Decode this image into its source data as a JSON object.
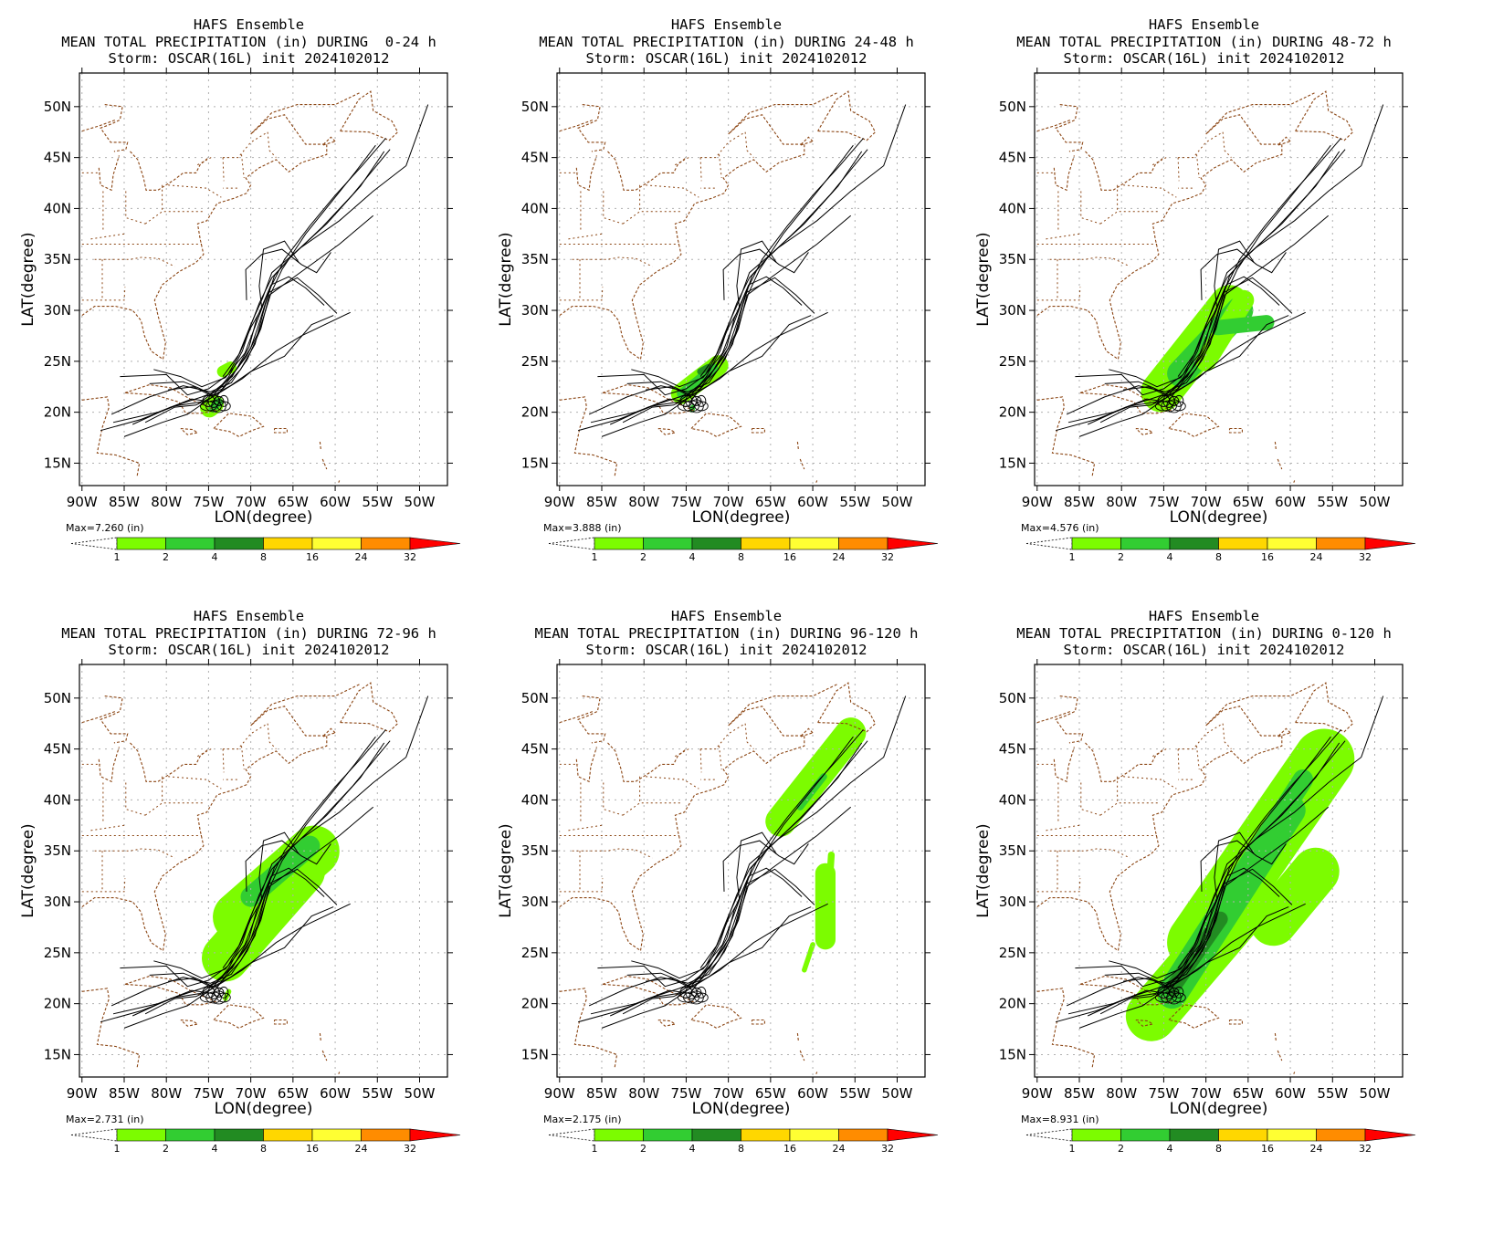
{
  "common": {
    "model": "HAFS Ensemble",
    "storm_line": "Storm: OSCAR(16L) init 2024102012",
    "x_axis_title": "LON(degree)",
    "y_axis_title": "LAT(degree)",
    "x_ticks": [
      "90W",
      "85W",
      "80W",
      "75W",
      "70W",
      "65W",
      "60W",
      "55W",
      "50W"
    ],
    "y_ticks": [
      "15N",
      "20N",
      "25N",
      "30N",
      "35N",
      "40N",
      "45N",
      "50N"
    ],
    "units": "(in)",
    "colorbar_levels": [
      "1",
      "2",
      "4",
      "8",
      "16",
      "24",
      "32"
    ],
    "colorbar_colors": [
      "#7cfc00",
      "#32cd32",
      "#228b22",
      "#ffd700",
      "#ffff33",
      "#ff8c00",
      "#ff0000"
    ],
    "coastline_color": "#8b4513",
    "track_color": "#000000"
  },
  "panels": [
    {
      "title": "MEAN TOTAL PRECIPITATION (in) DURING  0-24 h",
      "max_label": "Max=7.260"
    },
    {
      "title": "MEAN TOTAL PRECIPITATION (in) DURING 24-48 h",
      "max_label": "Max=3.888"
    },
    {
      "title": "MEAN TOTAL PRECIPITATION (in) DURING 48-72 h",
      "max_label": "Max=4.576"
    },
    {
      "title": "MEAN TOTAL PRECIPITATION (in) DURING 72-96 h",
      "max_label": "Max=2.731"
    },
    {
      "title": "MEAN TOTAL PRECIPITATION (in) DURING 96-120 h",
      "max_label": "Max=2.175"
    },
    {
      "title": "MEAN TOTAL PRECIPITATION (in) DURING 0-120 h",
      "max_label": "Max=8.931"
    }
  ]
}
